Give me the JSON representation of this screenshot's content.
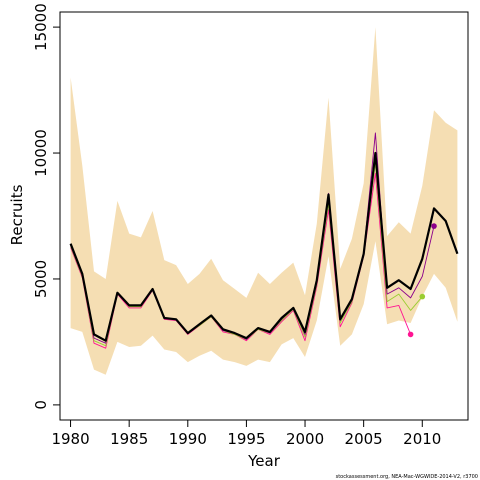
{
  "chart_data": {
    "type": "line",
    "xlabel": "Year",
    "ylabel": "Recruits",
    "xlim": [
      1979.1,
      2013.9
    ],
    "ylim": [
      -600,
      15600
    ],
    "xticks": [
      1980,
      1985,
      1990,
      1995,
      2000,
      2005,
      2010
    ],
    "yticks": [
      0,
      5000,
      10000,
      15000
    ],
    "grid": false,
    "legend": "none",
    "caption": "stockassessment.org, NEA-Mac-WGWIDE-2014-V2, r3700",
    "colors": {
      "band": "#f5deb3",
      "main": "#000000",
      "retro_magenta": "#ff1493",
      "retro_green": "#9acd32",
      "retro_purple": "#8b008b"
    },
    "band": {
      "x": [
        1980,
        1981,
        1982,
        1983,
        1984,
        1985,
        1986,
        1987,
        1988,
        1989,
        1990,
        1991,
        1992,
        1993,
        1994,
        1995,
        1996,
        1997,
        1998,
        1999,
        2000,
        2001,
        2002,
        2003,
        2004,
        2005,
        2006,
        2007,
        2008,
        2009,
        2010,
        2011,
        2012,
        2013
      ],
      "upper": [
        13000,
        9500,
        5300,
        5000,
        8100,
        6800,
        6650,
        7700,
        5750,
        5550,
        4800,
        5200,
        5800,
        4950,
        4600,
        4250,
        5250,
        4800,
        5250,
        5650,
        4350,
        7200,
        12200,
        5400,
        6600,
        8800,
        15000,
        6700,
        7250,
        6800,
        8700,
        11700,
        11200,
        10900
      ],
      "lower": [
        3050,
        2900,
        1400,
        1200,
        2500,
        2300,
        2350,
        2750,
        2200,
        2100,
        1700,
        1950,
        2150,
        1800,
        1700,
        1550,
        1800,
        1700,
        2400,
        2650,
        1900,
        3350,
        5900,
        2350,
        2800,
        4000,
        6500,
        3200,
        3350,
        3250,
        4300,
        5200,
        4650,
        3300
      ]
    },
    "series": [
      {
        "x": [
          1980,
          1981,
          1982,
          1983,
          1984,
          1985,
          1986,
          1987,
          1988,
          1989,
          1990,
          1991,
          1992,
          1993,
          1994,
          1995,
          1996,
          1997,
          1998,
          1999,
          2000,
          2001,
          2002,
          2003,
          2004,
          2005,
          2006,
          2007,
          2008,
          2009,
          2010,
          2011,
          2012,
          2013
        ],
        "values": [
          6400,
          5200,
          2800,
          2550,
          4450,
          3950,
          3950,
          4600,
          3450,
          3400,
          2850,
          3200,
          3550,
          3000,
          2850,
          2650,
          3050,
          2900,
          3450,
          3850,
          2900,
          4950,
          8350,
          3400,
          4200,
          6000,
          10000,
          4650,
          4950,
          4600,
          5800,
          7800,
          7300,
          6000
        ]
      },
      {
        "x": [
          1980,
          1981,
          1982,
          1983,
          1984,
          1985,
          1986,
          1987,
          1988,
          1989,
          1990,
          1991,
          1992,
          1993,
          1994,
          1995,
          1996,
          1997,
          1998,
          1999,
          2000,
          2001,
          2002,
          2003,
          2004,
          2005,
          2006,
          2007,
          2008,
          2009
        ],
        "values": [
          6250,
          5050,
          2450,
          2250,
          4400,
          3850,
          3850,
          4550,
          3400,
          3350,
          2800,
          3150,
          3500,
          2900,
          2800,
          2550,
          3000,
          2800,
          3300,
          3750,
          2550,
          4700,
          7750,
          3100,
          4050,
          5900,
          9200,
          3850,
          3950,
          2800
        ]
      },
      {
        "x": [
          1980,
          1981,
          1982,
          1983,
          1984,
          1985,
          1986,
          1987,
          1988,
          1989,
          1990,
          1991,
          1992,
          1993,
          1994,
          1995,
          1996,
          1997,
          1998,
          1999,
          2000,
          2001,
          2002,
          2003,
          2004,
          2005,
          2006,
          2007,
          2008,
          2009,
          2010
        ],
        "values": [
          6300,
          5100,
          2550,
          2350,
          4450,
          3900,
          3900,
          4600,
          3450,
          3400,
          2850,
          3150,
          3500,
          2950,
          2800,
          2600,
          3000,
          2850,
          3350,
          3800,
          2700,
          4800,
          8000,
          3250,
          4100,
          5950,
          9600,
          4100,
          4400,
          3750,
          4300
        ]
      },
      {
        "x": [
          1980,
          1981,
          1982,
          1983,
          1984,
          1985,
          1986,
          1987,
          1988,
          1989,
          1990,
          1991,
          1992,
          1993,
          1994,
          1995,
          1996,
          1997,
          1998,
          1999,
          2000,
          2001,
          2002,
          2003,
          2004,
          2005,
          2006,
          2007,
          2008,
          2009,
          2010,
          2011
        ],
        "values": [
          6350,
          5150,
          2650,
          2450,
          4450,
          3950,
          3950,
          4600,
          3450,
          3400,
          2850,
          3200,
          3550,
          2950,
          2850,
          2600,
          3050,
          2850,
          3400,
          3850,
          2800,
          4900,
          8400,
          3350,
          4150,
          6050,
          10800,
          4400,
          4650,
          4250,
          5100,
          7100
        ]
      }
    ]
  }
}
